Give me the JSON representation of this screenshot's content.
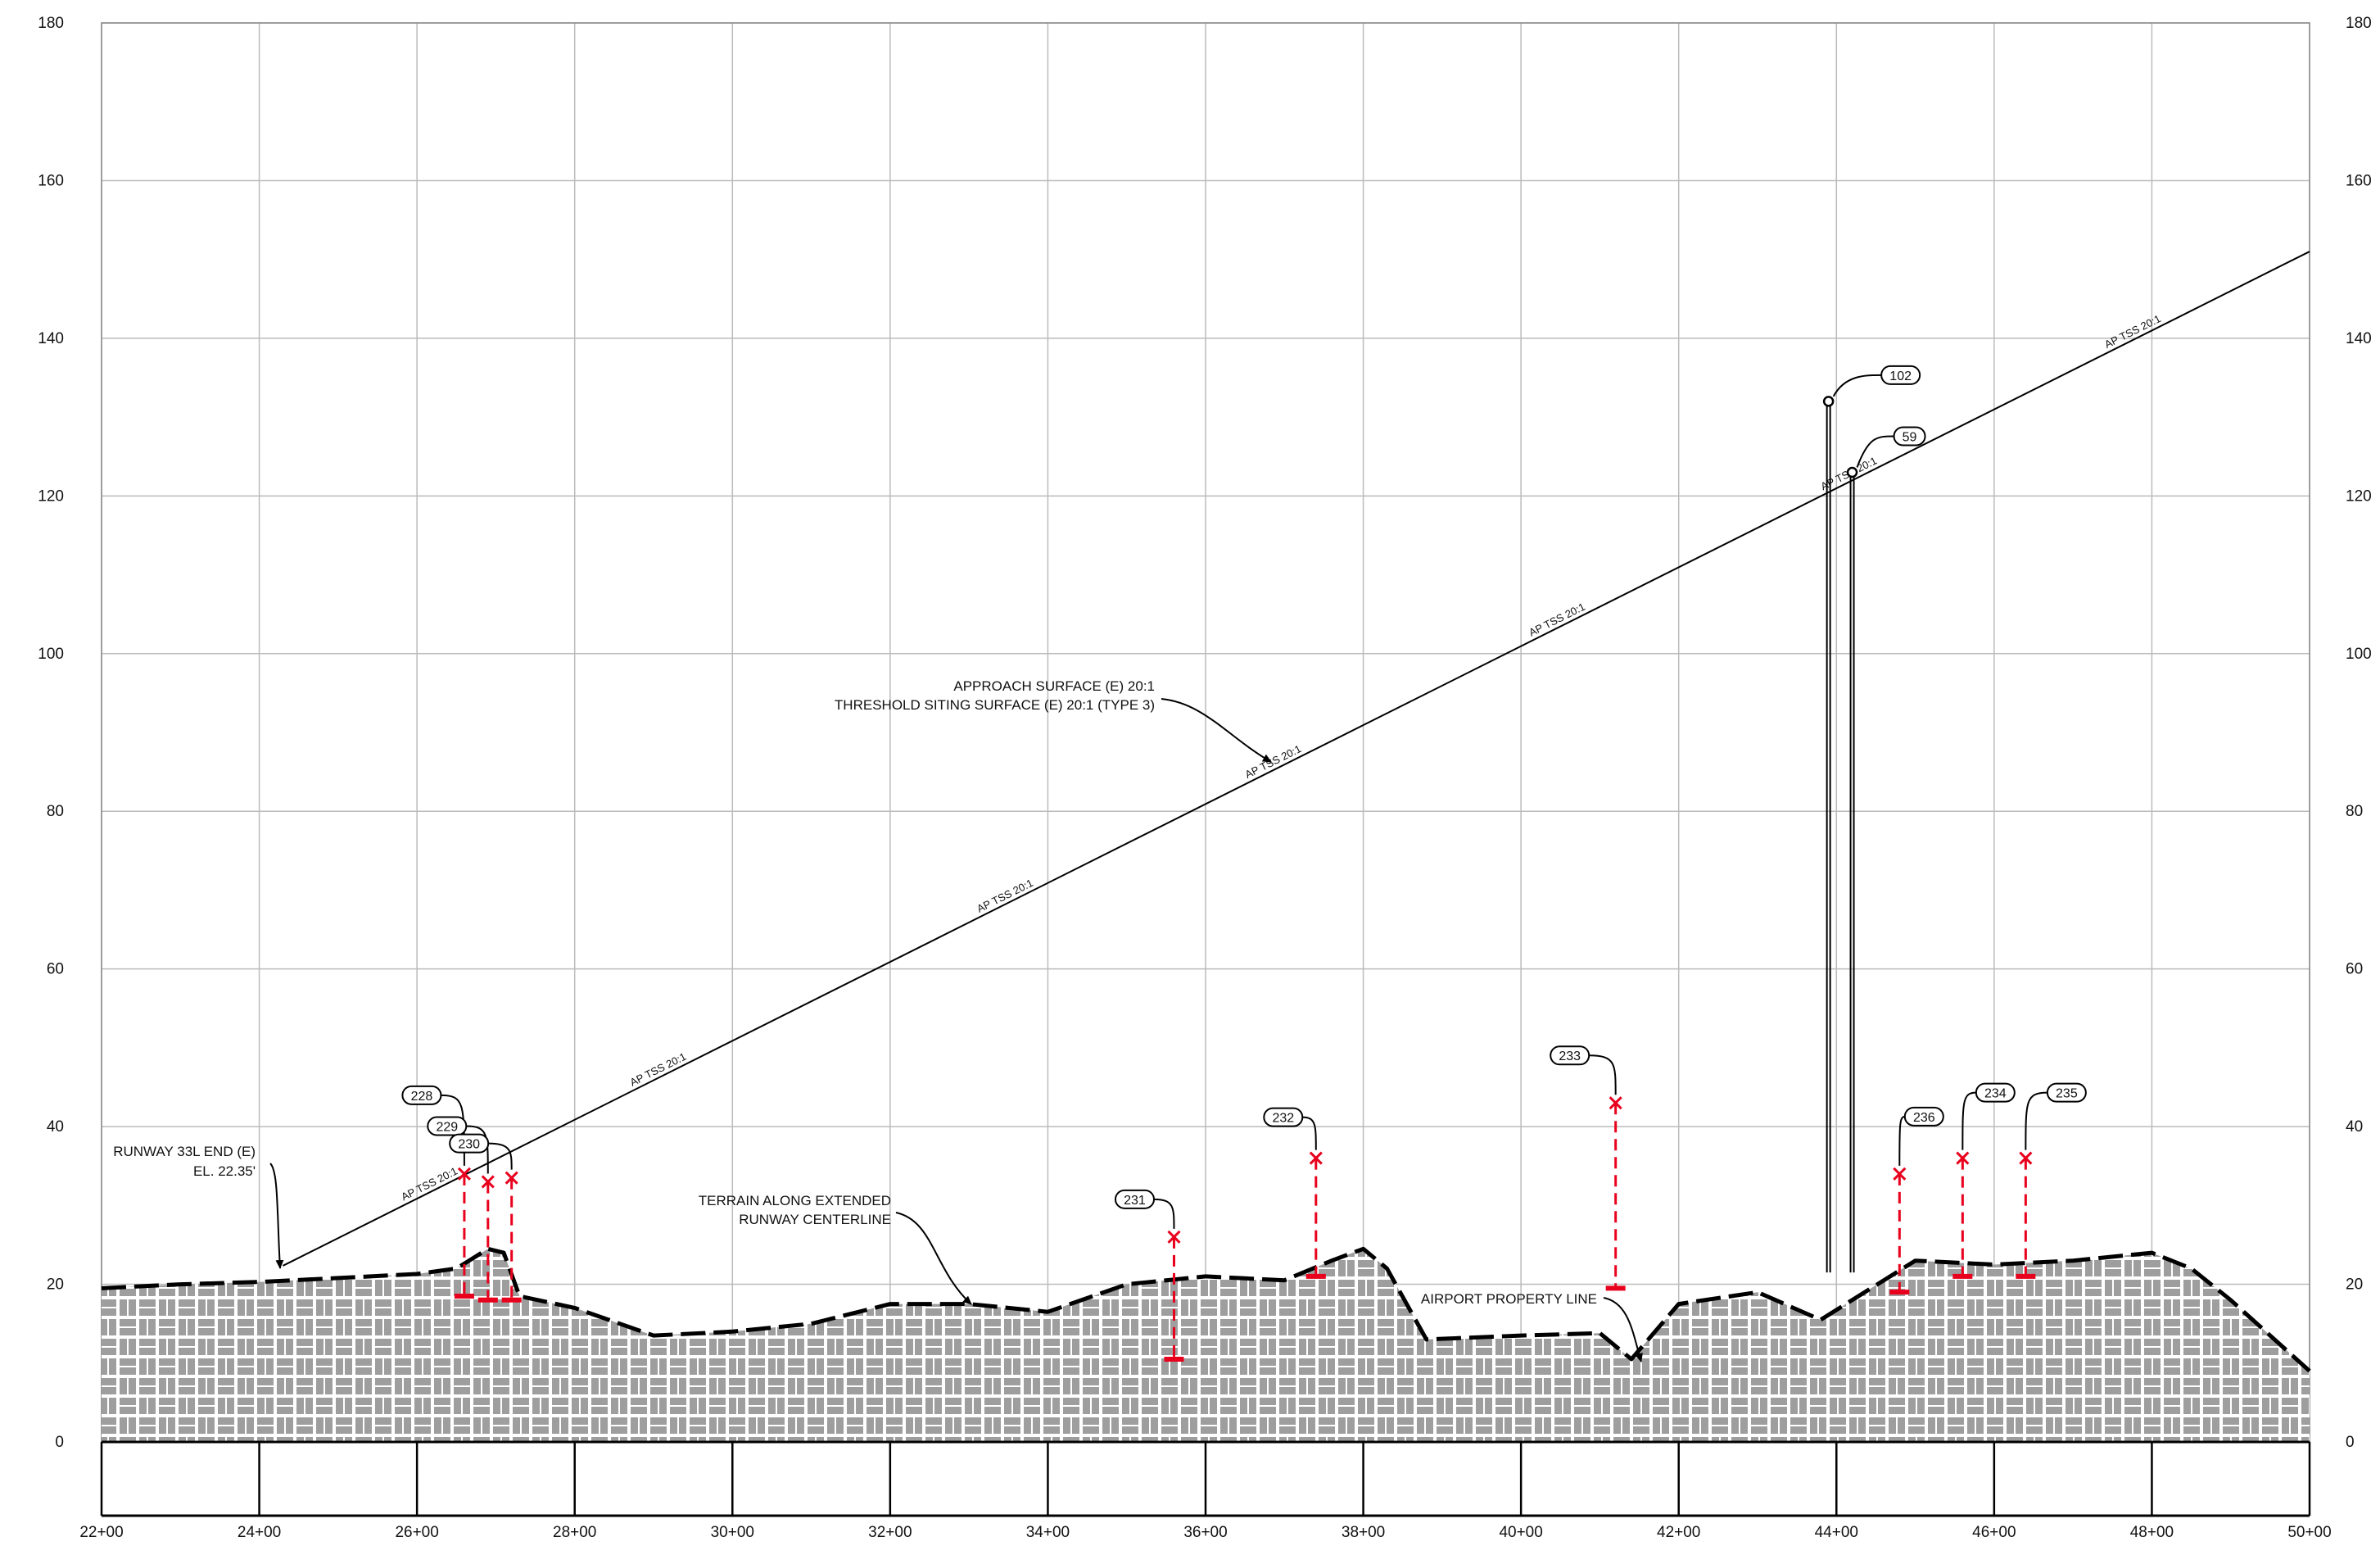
{
  "axes": {
    "y_ticks": [
      "0",
      "20",
      "40",
      "60",
      "80",
      "100",
      "120",
      "140",
      "160",
      "180"
    ],
    "x_ticks": [
      "22+00",
      "24+00",
      "26+00",
      "28+00",
      "30+00",
      "32+00",
      "34+00",
      "36+00",
      "38+00",
      "40+00",
      "42+00",
      "44+00",
      "46+00",
      "48+00",
      "50+00"
    ],
    "y_range": [
      0,
      180
    ],
    "x_range_stations": [
      2200,
      5000
    ],
    "grid": true
  },
  "annotations": {
    "runway_end": [
      "RUNWAY 33L END (E)",
      "EL. 22.35'"
    ],
    "approach_surface": [
      "APPROACH SURFACE (E) 20:1",
      "THRESHOLD SITING SURFACE (E) 20:1 (TYPE 3)"
    ],
    "terrain": [
      "TERRAIN ALONG EXTENDED",
      "RUNWAY CENTERLINE"
    ],
    "property_line": "AIRPORT PROPERTY LINE",
    "surface_label": "AP TSS 20:1"
  },
  "colors": {
    "obstruction": "#e8001c",
    "terrain_fill": "#9e9e9e",
    "grid": "#bbbbbb"
  },
  "chart_data": {
    "type": "profile",
    "surface": {
      "label": "AP TSS 20:1",
      "start": {
        "station": 2430,
        "elevation": 22.35
      },
      "end": {
        "station": 5000,
        "elevation": 151
      }
    },
    "terrain": [
      [
        2200,
        19.5
      ],
      [
        2300,
        20
      ],
      [
        2400,
        20.3
      ],
      [
        2500,
        20.8
      ],
      [
        2600,
        21.3
      ],
      [
        2650,
        22
      ],
      [
        2690,
        24.5
      ],
      [
        2710,
        24
      ],
      [
        2730,
        18.5
      ],
      [
        2800,
        17
      ],
      [
        2900,
        13.5
      ],
      [
        3000,
        14
      ],
      [
        3100,
        15
      ],
      [
        3200,
        17.5
      ],
      [
        3300,
        17.5
      ],
      [
        3400,
        16.5
      ],
      [
        3500,
        20
      ],
      [
        3600,
        21
      ],
      [
        3700,
        20.5
      ],
      [
        3760,
        23
      ],
      [
        3800,
        24.5
      ],
      [
        3830,
        22
      ],
      [
        3880,
        13
      ],
      [
        4000,
        13.5
      ],
      [
        4100,
        13.8
      ],
      [
        4140,
        10.5
      ],
      [
        4200,
        17.5
      ],
      [
        4300,
        19
      ],
      [
        4380,
        15.5
      ],
      [
        4500,
        23
      ],
      [
        4600,
        22.5
      ],
      [
        4700,
        23
      ],
      [
        4800,
        24
      ],
      [
        4850,
        22
      ],
      [
        4900,
        18
      ],
      [
        5000,
        9
      ]
    ],
    "obstructions": [
      {
        "id": "228",
        "station": 2660,
        "top": 34,
        "base": 18.5
      },
      {
        "id": "229",
        "station": 2690,
        "top": 33,
        "base": 18
      },
      {
        "id": "230",
        "station": 2720,
        "top": 33.5,
        "base": 18
      },
      {
        "id": "231",
        "station": 3560,
        "top": 26,
        "base": 10.5
      },
      {
        "id": "232",
        "station": 3740,
        "top": 36,
        "base": 21
      },
      {
        "id": "233",
        "station": 4120,
        "top": 43,
        "base": 19.5
      },
      {
        "id": "236",
        "station": 4480,
        "top": 34,
        "base": 19
      },
      {
        "id": "234",
        "station": 4560,
        "top": 36,
        "base": 21
      },
      {
        "id": "235",
        "station": 4640,
        "top": 36,
        "base": 21
      }
    ],
    "penetrations": [
      {
        "id": "102",
        "station": 4390,
        "top": 132
      },
      {
        "id": "59",
        "station": 4420,
        "top": 123
      }
    ]
  }
}
